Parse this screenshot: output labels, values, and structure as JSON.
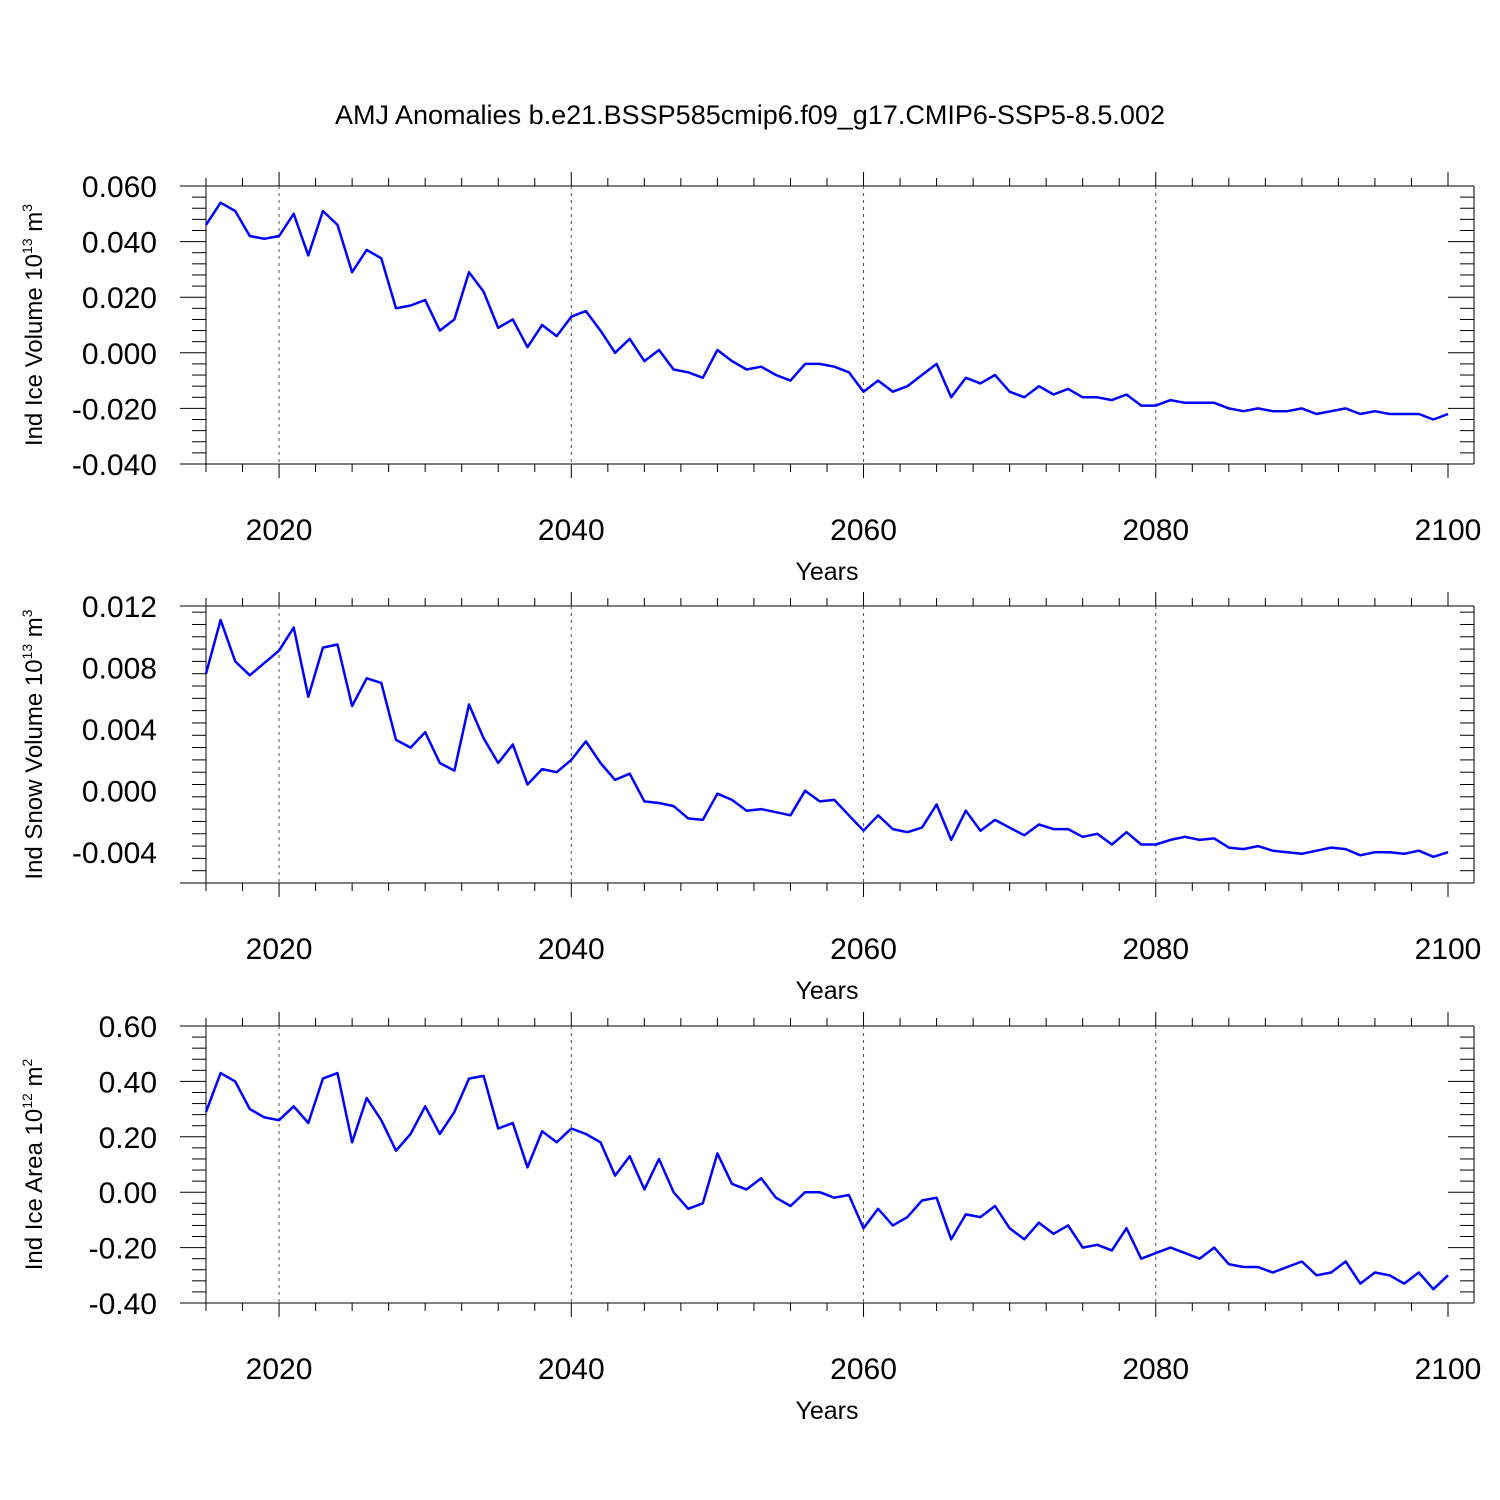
{
  "title": "AMJ Anomalies b.e21.BSSP585cmip6.f09_g17.CMIP6-SSP5-8.5.002",
  "line_color": "#0000ff",
  "chart_data": [
    {
      "type": "line",
      "ylabel": {
        "prefix": "Ind Ice Volume 10",
        "exp": "13",
        "unit": " m",
        "unit_exp": "3"
      },
      "xlabel": "Years",
      "xlim": [
        2015,
        2100
      ],
      "ylim": [
        -0.04,
        0.06
      ],
      "xticks": [
        "2020",
        "2040",
        "2060",
        "2080",
        "2100"
      ],
      "yticks": [
        "0.060",
        "0.040",
        "0.020",
        "0.000",
        "-0.020",
        "-0.040"
      ],
      "ytick_values": [
        0.06,
        0.04,
        0.02,
        0.0,
        -0.02,
        -0.04
      ],
      "x_start": 2015,
      "series": [
        {
          "values": [
            0.046,
            0.054,
            0.051,
            0.042,
            0.041,
            0.042,
            0.05,
            0.035,
            0.051,
            0.046,
            0.029,
            0.037,
            0.034,
            0.016,
            0.017,
            0.019,
            0.008,
            0.012,
            0.029,
            0.022,
            0.009,
            0.012,
            0.002,
            0.01,
            0.006,
            0.013,
            0.015,
            0.008,
            0.0,
            0.005,
            -0.003,
            0.001,
            -0.006,
            -0.007,
            -0.009,
            0.001,
            -0.003,
            -0.006,
            -0.005,
            -0.008,
            -0.01,
            -0.004,
            -0.004,
            -0.005,
            -0.007,
            -0.014,
            -0.01,
            -0.014,
            -0.012,
            -0.008,
            -0.004,
            -0.016,
            -0.009,
            -0.011,
            -0.008,
            -0.014,
            -0.016,
            -0.012,
            -0.015,
            -0.013,
            -0.016,
            -0.016,
            -0.017,
            -0.015,
            -0.019,
            -0.019,
            -0.017,
            -0.018,
            -0.018,
            -0.018,
            -0.02,
            -0.021,
            -0.02,
            -0.021,
            -0.021,
            -0.02,
            -0.022,
            -0.021,
            -0.02,
            -0.022,
            -0.021,
            -0.022,
            -0.022,
            -0.022,
            -0.024,
            -0.022
          ]
        }
      ]
    },
    {
      "type": "line",
      "ylabel": {
        "prefix": "Ind Snow Volume 10",
        "exp": "13",
        "unit": " m",
        "unit_exp": "3"
      },
      "xlabel": "Years",
      "xlim": [
        2015,
        2100
      ],
      "ylim": [
        -0.006,
        0.012
      ],
      "xticks": [
        "2020",
        "2040",
        "2060",
        "2080",
        "2100"
      ],
      "yticks": [
        "0.012",
        "0.008",
        "0.004",
        "0.000",
        "-0.004"
      ],
      "ytick_values": [
        0.012,
        0.008,
        0.004,
        0.0,
        -0.004
      ],
      "x_start": 2015,
      "series": [
        {
          "values": [
            0.0076,
            0.0111,
            0.0084,
            0.0075,
            0.0083,
            0.0091,
            0.0106,
            0.0061,
            0.0093,
            0.0095,
            0.0055,
            0.0073,
            0.007,
            0.0033,
            0.0028,
            0.0038,
            0.0018,
            0.0013,
            0.0056,
            0.0034,
            0.0018,
            0.003,
            0.0004,
            0.0014,
            0.0012,
            0.002,
            0.0032,
            0.0018,
            0.0007,
            0.0011,
            -0.0007,
            -0.0008,
            -0.001,
            -0.0018,
            -0.0019,
            -0.0002,
            -0.0006,
            -0.0013,
            -0.0012,
            -0.0014,
            -0.0016,
            0.0,
            -0.0007,
            -0.0006,
            -0.0016,
            -0.0026,
            -0.0016,
            -0.0025,
            -0.0027,
            -0.0024,
            -0.0009,
            -0.0032,
            -0.0013,
            -0.0026,
            -0.0019,
            -0.0024,
            -0.0029,
            -0.0022,
            -0.0025,
            -0.0025,
            -0.003,
            -0.0028,
            -0.0035,
            -0.0027,
            -0.0035,
            -0.0035,
            -0.0032,
            -0.003,
            -0.0032,
            -0.0031,
            -0.0037,
            -0.0038,
            -0.0036,
            -0.0039,
            -0.004,
            -0.0041,
            -0.0039,
            -0.0037,
            -0.0038,
            -0.0042,
            -0.004,
            -0.004,
            -0.0041,
            -0.0039,
            -0.0043,
            -0.004
          ]
        }
      ]
    },
    {
      "type": "line",
      "ylabel": {
        "prefix": "Ind Ice Area 10",
        "exp": "12",
        "unit": " m",
        "unit_exp": "2"
      },
      "xlabel": "Years",
      "xlim": [
        2015,
        2100
      ],
      "ylim": [
        -0.4,
        0.6
      ],
      "xticks": [
        "2020",
        "2040",
        "2060",
        "2080",
        "2100"
      ],
      "yticks": [
        "0.60",
        "0.40",
        "0.20",
        "0.00",
        "-0.20",
        "-0.40"
      ],
      "ytick_values": [
        0.6,
        0.4,
        0.2,
        0.0,
        -0.2,
        -0.4
      ],
      "x_start": 2015,
      "series": [
        {
          "values": [
            0.29,
            0.43,
            0.4,
            0.3,
            0.27,
            0.26,
            0.31,
            0.25,
            0.41,
            0.43,
            0.18,
            0.34,
            0.26,
            0.15,
            0.21,
            0.31,
            0.21,
            0.29,
            0.41,
            0.42,
            0.23,
            0.25,
            0.09,
            0.22,
            0.18,
            0.23,
            0.21,
            0.18,
            0.06,
            0.13,
            0.01,
            0.12,
            0.0,
            -0.06,
            -0.04,
            0.14,
            0.03,
            0.01,
            0.05,
            -0.02,
            -0.05,
            0.0,
            0.0,
            -0.02,
            -0.01,
            -0.13,
            -0.06,
            -0.12,
            -0.09,
            -0.03,
            -0.02,
            -0.17,
            -0.08,
            -0.09,
            -0.05,
            -0.13,
            -0.17,
            -0.11,
            -0.15,
            -0.12,
            -0.2,
            -0.19,
            -0.21,
            -0.13,
            -0.24,
            -0.22,
            -0.2,
            -0.22,
            -0.24,
            -0.2,
            -0.26,
            -0.27,
            -0.27,
            -0.29,
            -0.27,
            -0.25,
            -0.3,
            -0.29,
            -0.25,
            -0.33,
            -0.29,
            -0.3,
            -0.33,
            -0.29,
            -0.35,
            -0.3
          ]
        }
      ]
    }
  ]
}
